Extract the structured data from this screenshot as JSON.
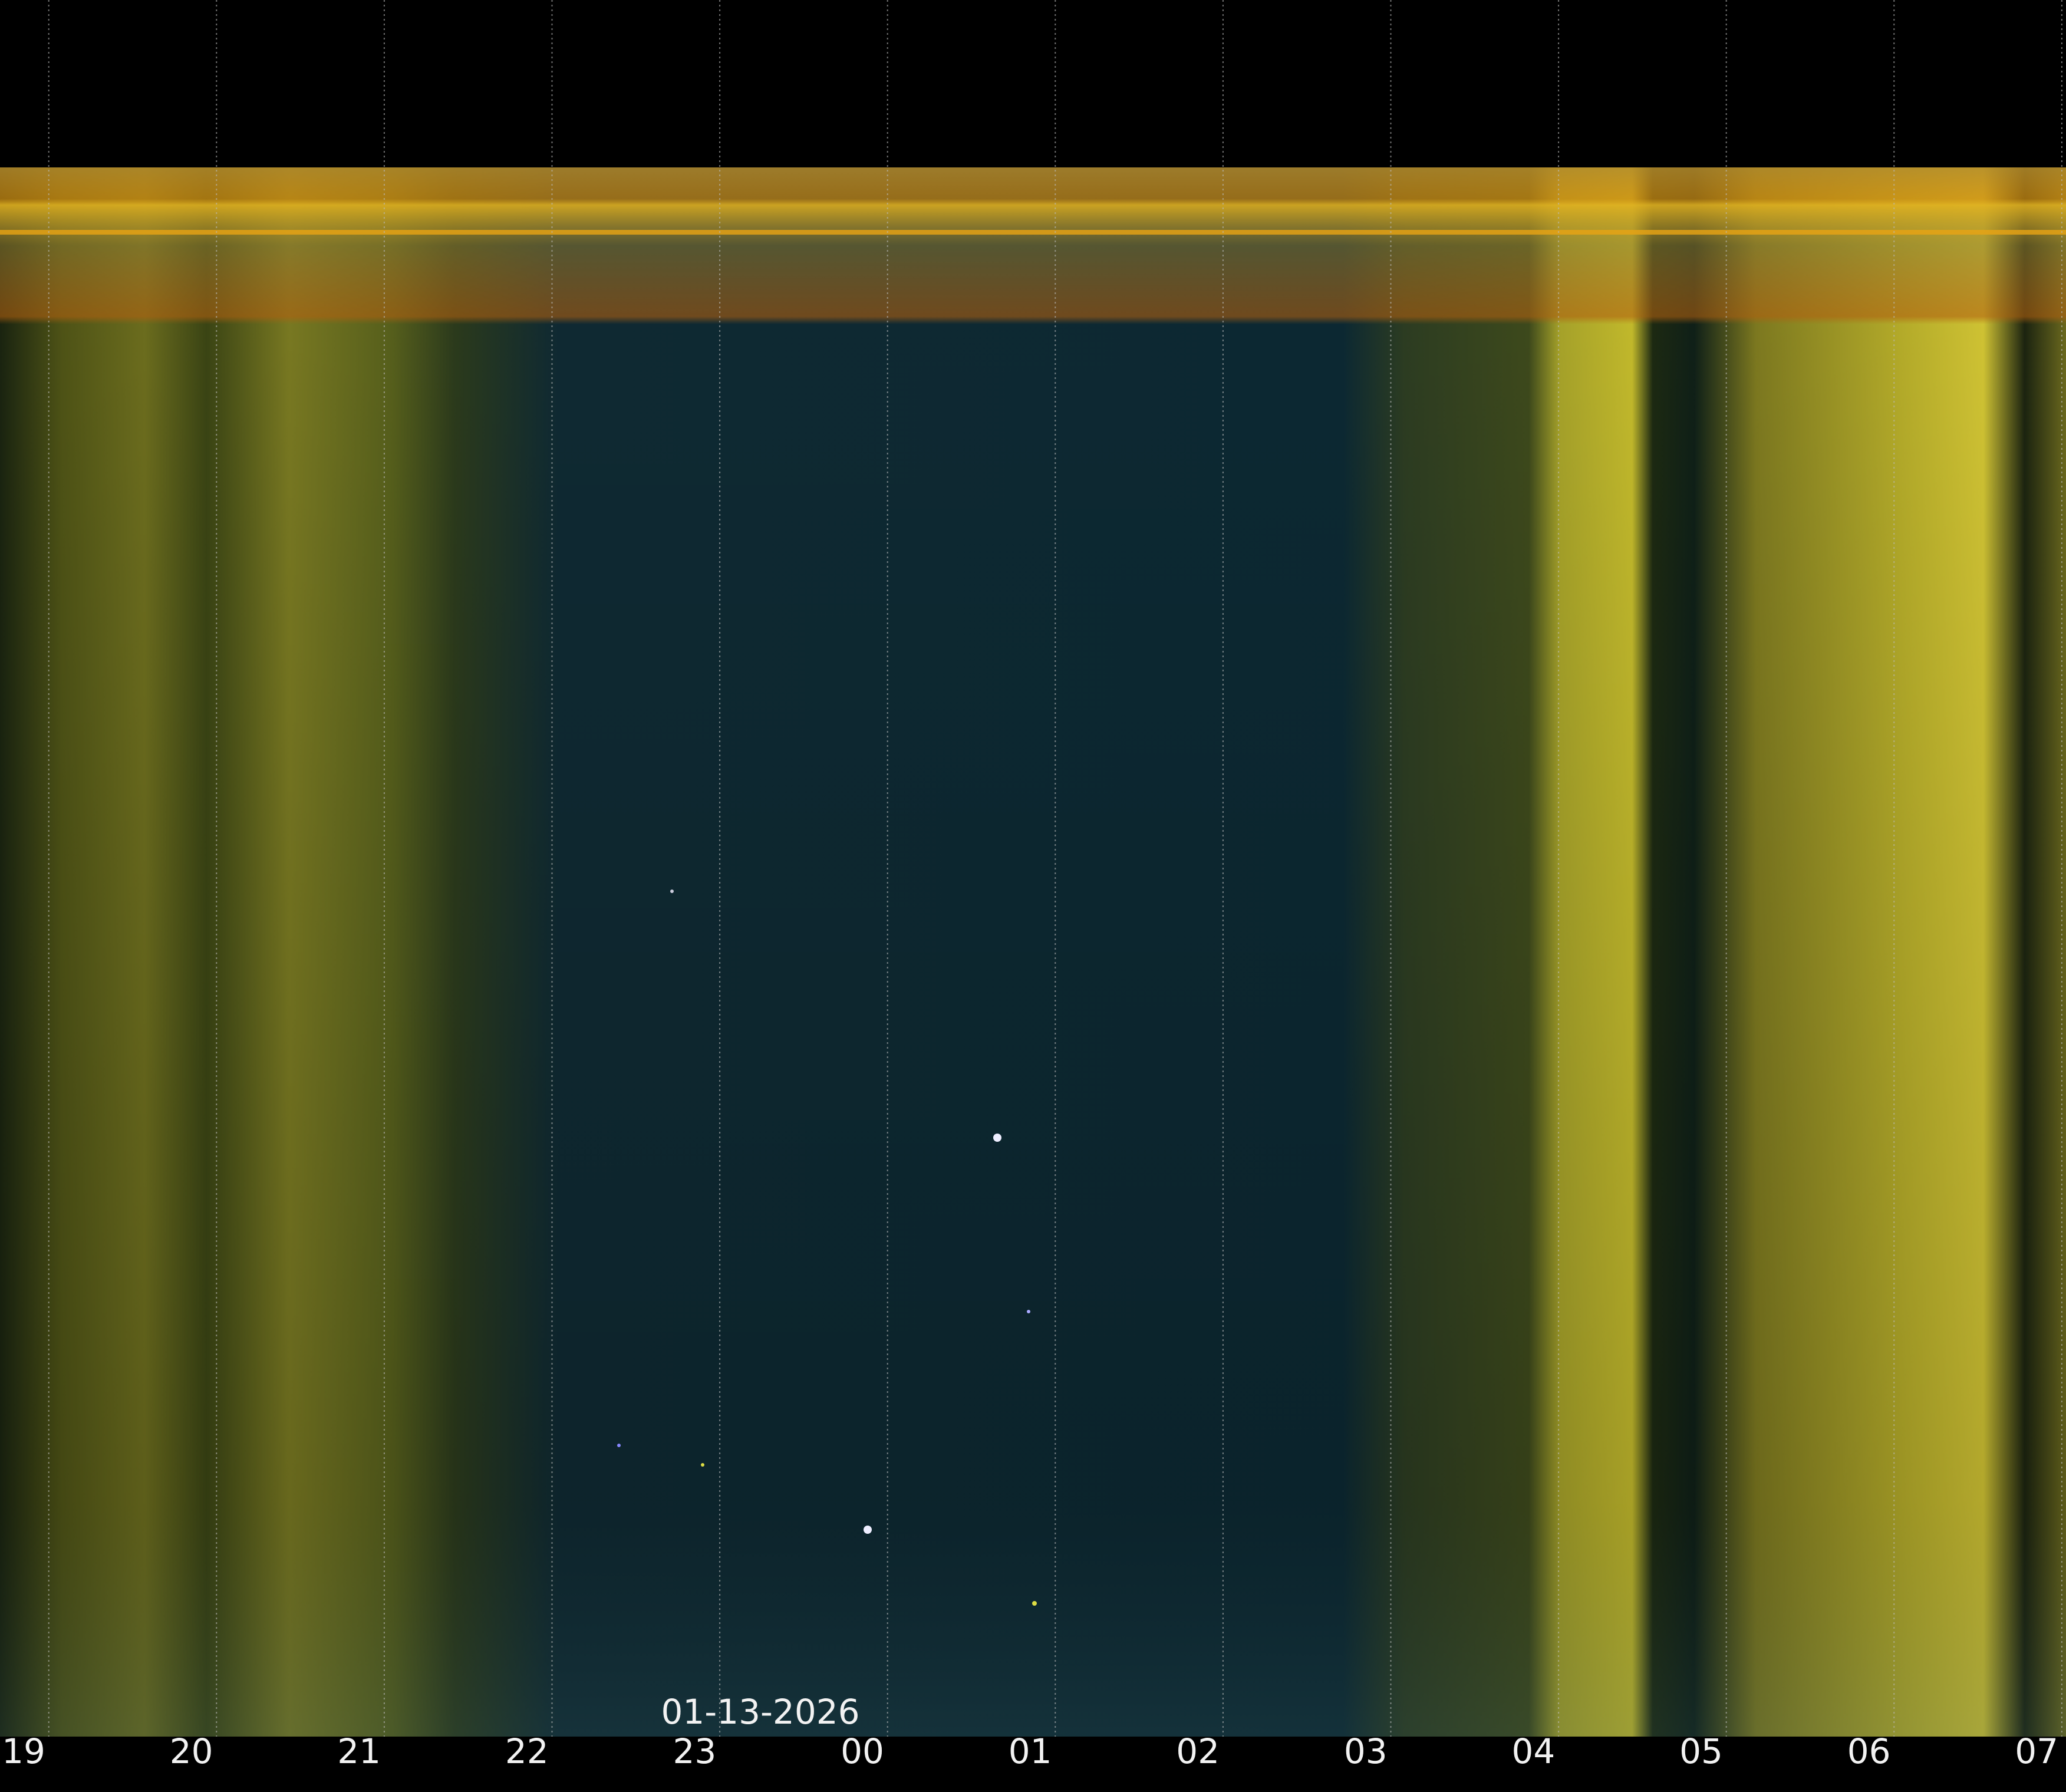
{
  "date": "01-13-2026",
  "hours": [
    "19",
    "20",
    "21",
    "22",
    "23",
    "00",
    "01",
    "02",
    "03",
    "04",
    "05",
    "06",
    "07"
  ]
}
